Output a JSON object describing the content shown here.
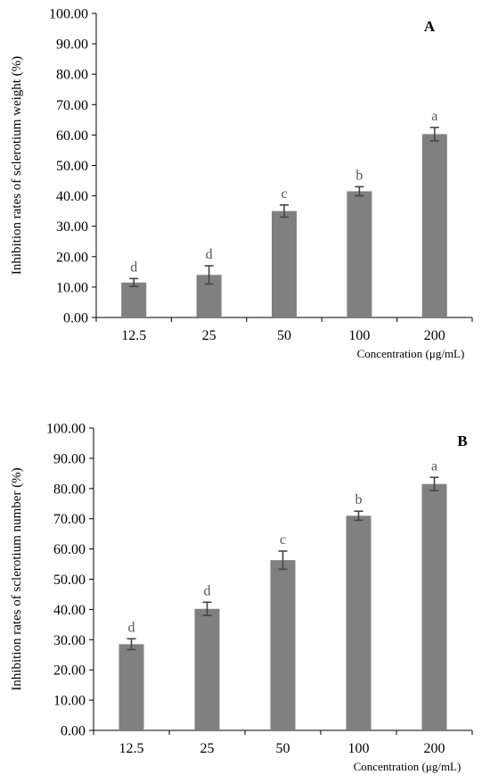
{
  "chart_data": [
    {
      "type": "bar",
      "panel_label": "A",
      "categories": [
        "12.5",
        "25",
        "50",
        "100",
        "200"
      ],
      "values": [
        11.5,
        14.0,
        35.0,
        41.5,
        60.3
      ],
      "errors": [
        1.3,
        3.0,
        2.0,
        1.5,
        2.2
      ],
      "significance": [
        "d",
        "d",
        "c",
        "b",
        "a"
      ],
      "ylabel": "Inhibition rates of sclerotium weight (%)",
      "xlabel": "Concentration (μg/mL)",
      "ylim": [
        0,
        100
      ],
      "yticks": [
        "0.00",
        "10.00",
        "20.00",
        "30.00",
        "40.00",
        "50.00",
        "60.00",
        "70.00",
        "80.00",
        "90.00",
        "100.00"
      ],
      "bar_color": "#808080",
      "grid": false
    },
    {
      "type": "bar",
      "panel_label": "B",
      "categories": [
        "12.5",
        "25",
        "50",
        "100",
        "200"
      ],
      "values": [
        28.5,
        40.2,
        56.3,
        71.0,
        81.5
      ],
      "errors": [
        1.8,
        2.2,
        3.0,
        1.5,
        2.2
      ],
      "significance": [
        "d",
        "d",
        "c",
        "b",
        "a"
      ],
      "ylabel": "Inhibition rates of sclerotium number (%)",
      "xlabel": "Concentration (μg/mL)",
      "ylim": [
        0,
        100
      ],
      "yticks": [
        "0.00",
        "10.00",
        "20.00",
        "30.00",
        "40.00",
        "50.00",
        "60.00",
        "70.00",
        "80.00",
        "90.00",
        "100.00"
      ],
      "bar_color": "#808080",
      "grid": false
    }
  ]
}
